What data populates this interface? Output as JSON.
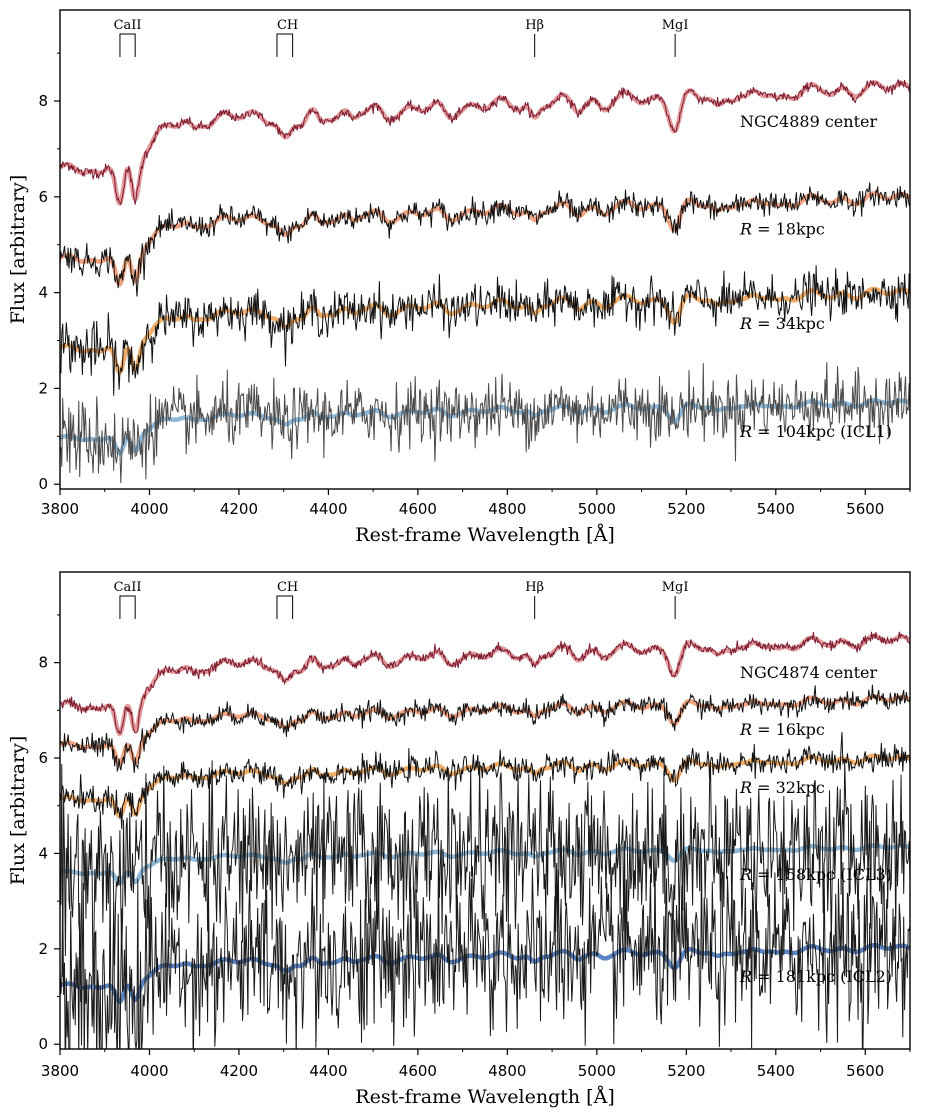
{
  "chart_data": [
    {
      "type": "line",
      "panel": "top",
      "xlabel": "Rest-frame Wavelength [Å]",
      "ylabel": "Flux [arbitrary]",
      "xlim": [
        3800,
        5700
      ],
      "ylim": [
        -0.1,
        9.9
      ],
      "xticks": [
        "3800",
        "4000",
        "4200",
        "4400",
        "4600",
        "4800",
        "5000",
        "5200",
        "5400",
        "5600"
      ],
      "yticks": [
        "0",
        "2",
        "4",
        "6",
        "8"
      ],
      "absorption_lines": [
        {
          "name": "CaII",
          "x": [
            3934,
            3968
          ]
        },
        {
          "name": "CH",
          "x": [
            4285,
            4320
          ]
        },
        {
          "name": "Hβ",
          "x": [
            4861
          ]
        },
        {
          "name": "MgI",
          "x": [
            5175
          ]
        }
      ],
      "series": [
        {
          "name": "NGC4889 center",
          "label_italic": "",
          "label_rest": "NGC4889 center",
          "level": 7.7,
          "noise": 0.05,
          "tilt": 1.6,
          "model_color": "#e39a9a",
          "data_color": "#7a1b30",
          "fill": true,
          "offset": 0
        },
        {
          "name": "R = 18kpc",
          "label_italic": "R",
          "label_rest": " = 18kpc",
          "level": 5.55,
          "noise": 0.12,
          "tilt": 1.2,
          "model_color": "#f1a281",
          "data_color": "#111111",
          "fill": false,
          "offset": 0
        },
        {
          "name": "R = 34kpc",
          "label_italic": "R",
          "label_rest": " = 34kpc",
          "level": 3.6,
          "noise": 0.22,
          "tilt": 1.1,
          "model_color": "#f0ad6a",
          "data_color": "#111111",
          "fill": false,
          "offset": 0
        },
        {
          "name": "R = 104kpc (ICL1)",
          "label_italic": "R",
          "label_rest": " = 104kpc (ICL1)",
          "level": 1.45,
          "noise": 0.33,
          "tilt": 0.7,
          "model_color": "#8db8d8",
          "data_color": "#4a4a4a",
          "fill": false,
          "offset": 0
        }
      ]
    },
    {
      "type": "line",
      "panel": "bottom",
      "xlabel": "Rest-frame Wavelength [Å]",
      "ylabel": "Flux [arbitrary]",
      "xlim": [
        3800,
        5700
      ],
      "ylim": [
        -0.1,
        9.9
      ],
      "xticks": [
        "3800",
        "4000",
        "4200",
        "4400",
        "4600",
        "4800",
        "5000",
        "5200",
        "5400",
        "5600"
      ],
      "yticks": [
        "0",
        "2",
        "4",
        "6",
        "8"
      ],
      "absorption_lines": [
        {
          "name": "CaII",
          "x": [
            3934,
            3968
          ]
        },
        {
          "name": "CH",
          "x": [
            4285,
            4320
          ]
        },
        {
          "name": "Hβ",
          "x": [
            4861
          ]
        },
        {
          "name": "MgI",
          "x": [
            5175
          ]
        }
      ],
      "series": [
        {
          "name": "NGC4874 center",
          "label_italic": "",
          "label_rest": "NGC4874 center",
          "level": 8.0,
          "noise": 0.05,
          "tilt": 1.3,
          "model_color": "#e39a9a",
          "data_color": "#7a1b30",
          "fill": true,
          "offset": 0
        },
        {
          "name": "R = 16kpc",
          "label_italic": "R",
          "label_rest": " = 16kpc",
          "level": 6.9,
          "noise": 0.1,
          "tilt": 0.9,
          "model_color": "#f1a281",
          "data_color": "#111111",
          "fill": false,
          "offset": 0
        },
        {
          "name": "R = 32kpc",
          "label_italic": "R",
          "label_rest": " = 32kpc",
          "level": 5.7,
          "noise": 0.13,
          "tilt": 0.8,
          "model_color": "#f0ad6a",
          "data_color": "#111111",
          "fill": false,
          "offset": 0
        },
        {
          "name": "R = 158kpc (ICL3)",
          "label_italic": "R",
          "label_rest": " = 158kpc (ICL3)",
          "level": 3.95,
          "noise": 0.75,
          "tilt": 0.5,
          "model_color": "#8db8d8",
          "data_color": "#1a1a1a",
          "fill": false,
          "offset": 0
        },
        {
          "name": "R = 181kpc (ICL2)",
          "label_italic": "R",
          "label_rest": " = 181kpc (ICL2)",
          "level": 1.75,
          "noise": 0.8,
          "tilt": 0.75,
          "model_color": "#5a84c4",
          "data_color": "#1a1a1a",
          "fill": false,
          "offset": 0
        }
      ]
    }
  ]
}
